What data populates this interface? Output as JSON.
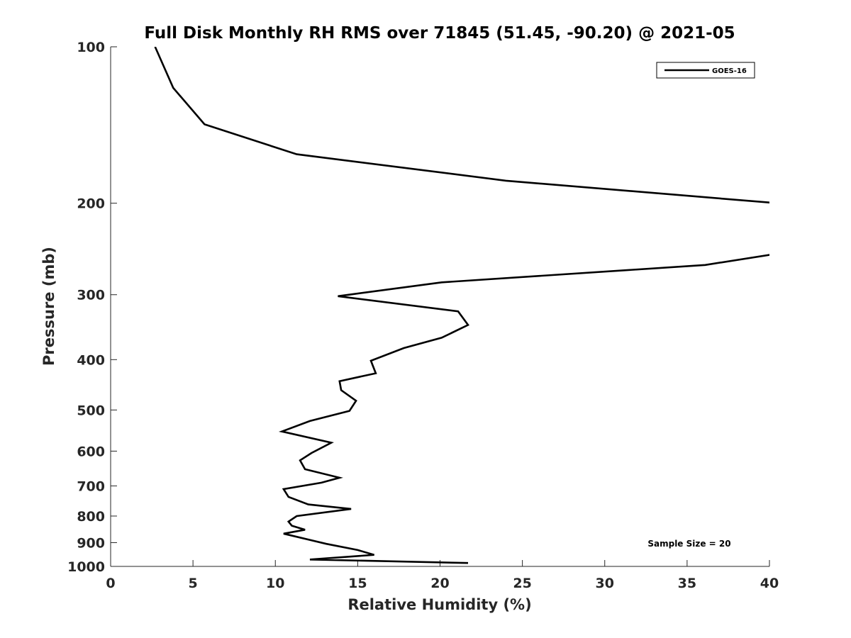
{
  "chart_data": {
    "type": "line",
    "title": "Full Disk Monthly RH RMS over 71845 (51.45, -90.20) @ 2021-05",
    "xlabel": "Relative Humidity (%)",
    "ylabel": "Pressure (mb)",
    "xlim": [
      0,
      40
    ],
    "ylim": [
      100,
      1000
    ],
    "y_scale": "log",
    "y_reversed": true,
    "x_ticks": [
      "0",
      "5",
      "10",
      "15",
      "20",
      "25",
      "30",
      "35",
      "40"
    ],
    "y_ticks": [
      "100",
      "200",
      "300",
      "400",
      "500",
      "600",
      "700",
      "800",
      "900",
      "1000"
    ],
    "grid": false,
    "legend": {
      "position": "top-right",
      "entries": [
        "GOES-16"
      ]
    },
    "annotation": "Sample Size = 20",
    "line_color": "#000000",
    "series": [
      {
        "name": "GOES-16",
        "points": [
          [
            2.7,
            100
          ],
          [
            3.8,
            120
          ],
          [
            5.7,
            141
          ],
          [
            11.3,
            161
          ],
          [
            24.0,
            181
          ],
          [
            40.5,
            200
          ],
          [
            40.5,
            250
          ],
          [
            36.1,
            263
          ],
          [
            20.1,
            284
          ],
          [
            13.8,
            302
          ],
          [
            21.1,
            323
          ],
          [
            21.7,
            343
          ],
          [
            20.1,
            363
          ],
          [
            17.8,
            380
          ],
          [
            15.8,
            402
          ],
          [
            16.1,
            425
          ],
          [
            13.9,
            440
          ],
          [
            14.0,
            458
          ],
          [
            14.9,
            480
          ],
          [
            14.5,
            502
          ],
          [
            12.1,
            525
          ],
          [
            10.4,
            550
          ],
          [
            13.4,
            578
          ],
          [
            12.2,
            605
          ],
          [
            11.5,
            625
          ],
          [
            11.8,
            650
          ],
          [
            13.9,
            675
          ],
          [
            12.8,
            690
          ],
          [
            10.5,
            710
          ],
          [
            10.8,
            735
          ],
          [
            12.0,
            760
          ],
          [
            14.6,
            775
          ],
          [
            11.3,
            800
          ],
          [
            10.8,
            820
          ],
          [
            11.0,
            835
          ],
          [
            11.8,
            850
          ],
          [
            10.5,
            865
          ],
          [
            13.1,
            905
          ],
          [
            15.0,
            930
          ],
          [
            16.0,
            950
          ],
          [
            12.1,
            970
          ],
          [
            21.7,
            985
          ]
        ]
      }
    ]
  }
}
